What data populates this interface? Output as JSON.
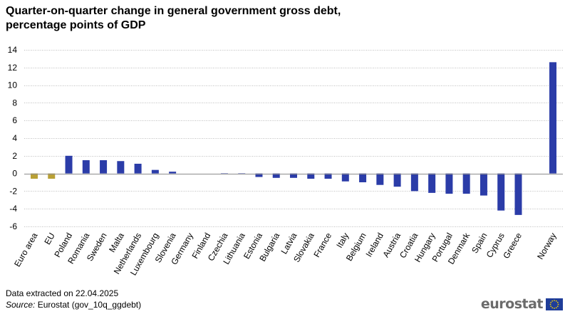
{
  "title_line1": "Quarter-on-quarter change in general government gross debt,",
  "title_line2": "percentage points of GDP",
  "footer": {
    "extracted": "Data extracted  on 22.04.2025",
    "source_label": "Source:",
    "source_text": " Eurostat (gov_10q_ggdebt)"
  },
  "brand": {
    "name": "eurostat",
    "flag_icon": "eu-flag-icon"
  },
  "colors": {
    "aggregate": "#B9A036",
    "country": "#2B3CA8",
    "grid": "#BDBDBD",
    "axis": "#8C8C8C"
  },
  "chart_data": {
    "type": "bar",
    "title": "Quarter-on-quarter change in general government gross debt, percentage points of GDP",
    "xlabel": "",
    "ylabel": "",
    "ylim": [
      -6,
      14
    ],
    "yticks": [
      -6,
      -4,
      -2,
      0,
      2,
      4,
      6,
      8,
      10,
      12,
      14
    ],
    "grid": true,
    "categories": [
      "Euro area",
      "EU",
      "Poland",
      "Romania",
      "Sweden",
      "Malta",
      "Netherlands",
      "Luxembourg",
      "Slovenia",
      "Germany",
      "Finland",
      "Czechia",
      "Lithuania",
      "Estonia",
      "Bulgaria",
      "Latvia",
      "Slovakia",
      "France",
      "Italy",
      "Belgium",
      "Ireland",
      "Austria",
      "Croatia",
      "Hungary",
      "Portugal",
      "Denmark",
      "Spain",
      "Cyprus",
      "Greece",
      "Norway"
    ],
    "values": [
      -0.6,
      -0.6,
      2.0,
      1.5,
      1.5,
      1.4,
      1.1,
      0.4,
      0.2,
      0.0,
      0.0,
      -0.1,
      -0.1,
      -0.4,
      -0.5,
      -0.5,
      -0.6,
      -0.6,
      -0.9,
      -1.0,
      -1.3,
      -1.5,
      -2.0,
      -2.2,
      -2.3,
      -2.3,
      -2.5,
      -4.2,
      -4.7,
      12.6
    ],
    "groups": [
      "aggregate",
      "aggregate",
      "country",
      "country",
      "country",
      "country",
      "country",
      "country",
      "country",
      "country",
      "country",
      "country",
      "country",
      "country",
      "country",
      "country",
      "country",
      "country",
      "country",
      "country",
      "country",
      "country",
      "country",
      "country",
      "country",
      "country",
      "country",
      "country",
      "country",
      "country"
    ],
    "gap_before": "Norway"
  }
}
